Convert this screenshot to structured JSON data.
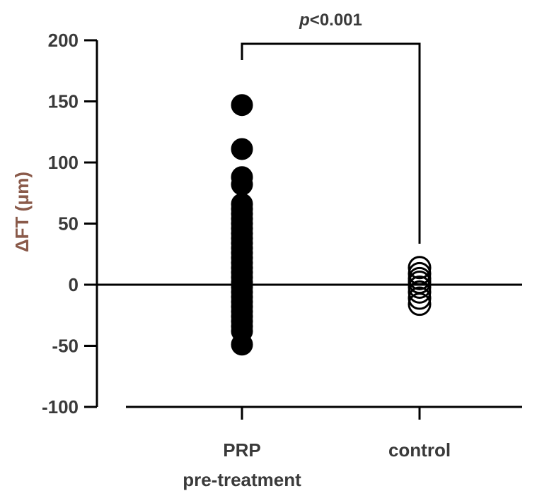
{
  "chart_data": {
    "type": "scatter",
    "title": "",
    "ylabel": "ΔFT (μm)",
    "xlabel": "",
    "ylim": [
      -100,
      200
    ],
    "yticks": [
      -100,
      -50,
      0,
      50,
      100,
      150,
      200
    ],
    "ytick_labels": [
      "-100",
      "-50",
      "0",
      "50",
      "100",
      "150",
      "200"
    ],
    "categories": [
      "PRP pre-treatment",
      "control"
    ],
    "category_lines": [
      [
        "PRP",
        "pre-treatment"
      ],
      [
        "control"
      ]
    ],
    "series": [
      {
        "category": "PRP pre-treatment",
        "marker": "filled",
        "color": "#000000",
        "values": [
          147,
          111,
          88,
          82,
          66,
          62,
          58,
          54,
          50,
          46,
          42,
          38,
          34,
          30,
          26,
          22,
          18,
          14,
          10,
          6,
          2,
          -2,
          -6,
          -10,
          -14,
          -18,
          -22,
          -26,
          -30,
          -34,
          -38,
          -49
        ]
      },
      {
        "category": "control",
        "marker": "open",
        "color": "#000000",
        "values": [
          14,
          9,
          5,
          2,
          -2,
          -6,
          -11,
          -16
        ]
      }
    ],
    "reference_line_y": 0,
    "grid": false,
    "significance": {
      "label_italic": "p",
      "label_rest": "<0.001",
      "from_category": 0,
      "to_category": 1
    }
  }
}
